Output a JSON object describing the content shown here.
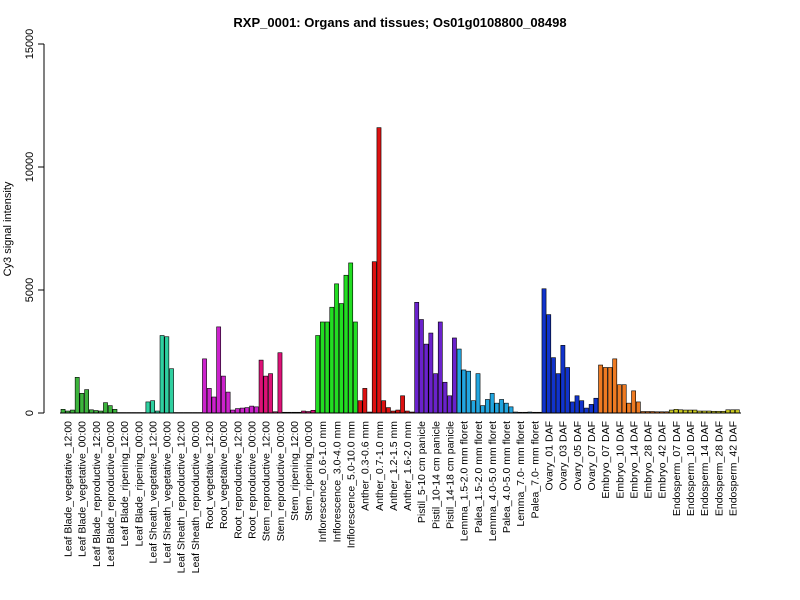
{
  "chart_data": {
    "type": "bar",
    "title": "RXP_0001: Organs and tissues; Os01g0108800_08498",
    "xlabel": "",
    "ylabel": "Cy3 signal intensity",
    "ylim": [
      0,
      15000
    ],
    "yticks": [
      0,
      5000,
      10000,
      15000
    ],
    "ytick_labels": [
      "0",
      "5000",
      "10000",
      "15000"
    ],
    "grid": false,
    "legend": "none",
    "groups": [
      {
        "label": "Leaf Blade_vegetative_12:00",
        "color": "#3cb43c",
        "values": [
          150,
          80,
          120
        ]
      },
      {
        "label": "Leaf Blade_vegetative_00:00",
        "color": "#3cb43c",
        "values": [
          1450,
          800,
          950
        ]
      },
      {
        "label": "Leaf Blade_reproductive_12:00",
        "color": "#3cb43c",
        "values": [
          130,
          100,
          80
        ]
      },
      {
        "label": "Leaf Blade_reproductive_00:00",
        "color": "#3cb43c",
        "values": [
          420,
          300,
          150
        ]
      },
      {
        "label": "Leaf Blade_ripening_12:00",
        "color": "#3cb43c",
        "values": [
          20,
          20,
          20
        ]
      },
      {
        "label": "Leaf Blade_ripening_00:00",
        "color": "#3cb43c",
        "values": [
          20,
          20,
          20
        ]
      },
      {
        "label": "Leaf Sheath_vegetative_12:00",
        "color": "#2fd0a0",
        "values": [
          450,
          500,
          80
        ]
      },
      {
        "label": "Leaf Sheath_vegetative_00:00",
        "color": "#2fd0a0",
        "values": [
          3150,
          3100,
          1800
        ]
      },
      {
        "label": "Leaf Sheath_reproductive_12:00",
        "color": "#2fd0a0",
        "values": [
          20,
          20,
          20
        ]
      },
      {
        "label": "Leaf Sheath_reproductive_00:00",
        "color": "#2fd0a0",
        "values": [
          20,
          20,
          20
        ]
      },
      {
        "label": "Root_vegetative_12:00",
        "color": "#cc22cc",
        "values": [
          2200,
          1000,
          650
        ]
      },
      {
        "label": "Root_vegetative_00:00",
        "color": "#cc22cc",
        "values": [
          3500,
          1500,
          850
        ]
      },
      {
        "label": "Root_reproductive_12:00",
        "color": "#cc22cc",
        "values": [
          120,
          180,
          200
        ]
      },
      {
        "label": "Root_reproductive_00:00",
        "color": "#cc22cc",
        "values": [
          220,
          280,
          250
        ]
      },
      {
        "label": "Stem_reproductive_12:00",
        "color": "#dd1177",
        "values": [
          2150,
          1500,
          1600
        ]
      },
      {
        "label": "Stem_reproductive_00:00",
        "color": "#dd1177",
        "values": [
          50,
          2450,
          30
        ]
      },
      {
        "label": "Stem_ripening_12:00",
        "color": "#dd1177",
        "values": [
          30,
          30,
          30
        ]
      },
      {
        "label": "Stem_ripening_00:00",
        "color": "#dd1177",
        "values": [
          80,
          60,
          110
        ]
      },
      {
        "label": "Inflorescence_0.6-1.0 mm",
        "color": "#22dd22",
        "values": [
          3150,
          3700,
          3700
        ]
      },
      {
        "label": "Inflorescence_3.0-4.0 mm",
        "color": "#22dd22",
        "values": [
          4300,
          5250,
          4450
        ]
      },
      {
        "label": "Inflorescence_5.0-10.0 mm",
        "color": "#22dd22",
        "values": [
          5600,
          6100,
          3700
        ]
      },
      {
        "label": "Anther_0.3-0.6 mm",
        "color": "#dd1111",
        "values": [
          500,
          1000,
          40
        ]
      },
      {
        "label": "Anther_0.7-1.0 mm",
        "color": "#dd1111",
        "values": [
          6150,
          11600,
          500
        ]
      },
      {
        "label": "Anther_1.2-1.5 mm",
        "color": "#dd1111",
        "values": [
          220,
          80,
          120
        ]
      },
      {
        "label": "Anther_1.6-2.0 mm",
        "color": "#dd1111",
        "values": [
          700,
          80,
          40
        ]
      },
      {
        "label": "Pistil_5-10 cm panicle",
        "color": "#6a22cc",
        "values": [
          4500,
          3800,
          2800
        ]
      },
      {
        "label": "Pistil_10-14 cm panicle",
        "color": "#6a22cc",
        "values": [
          3250,
          1600,
          3700
        ]
      },
      {
        "label": "Pistil_14-18 cm panicle",
        "color": "#6a22cc",
        "values": [
          1250,
          700,
          3050
        ]
      },
      {
        "label": "Lemma_1.5-2.0 mm floret",
        "color": "#22a6e0",
        "values": [
          2600,
          1750,
          1700
        ]
      },
      {
        "label": "Palea_1.5-2.0 mm floret",
        "color": "#22a6e0",
        "values": [
          500,
          1600,
          300
        ]
      },
      {
        "label": "Lemma_4.0-5.0 mm floret",
        "color": "#22a6e0",
        "values": [
          550,
          800,
          400
        ]
      },
      {
        "label": "Palea_4.0-5.0 mm floret",
        "color": "#22a6e0",
        "values": [
          550,
          400,
          250
        ]
      },
      {
        "label": "Lemma_7.0- mm floret",
        "color": "#22a6e0",
        "values": [
          40,
          30,
          30
        ]
      },
      {
        "label": "Palea_7.0- mm floret",
        "color": "#22a6e0",
        "values": [
          40,
          30,
          30
        ]
      },
      {
        "label": "Ovary_01 DAF",
        "color": "#1133cc",
        "values": [
          5050,
          4000,
          2250
        ]
      },
      {
        "label": "Ovary_03 DAF",
        "color": "#1133cc",
        "values": [
          1600,
          2750,
          1850
        ]
      },
      {
        "label": "Ovary_05 DAF",
        "color": "#1133cc",
        "values": [
          450,
          700,
          500
        ]
      },
      {
        "label": "Ovary_07 DAF",
        "color": "#1133cc",
        "values": [
          200,
          350,
          600
        ]
      },
      {
        "label": "Embryo_07 DAF",
        "color": "#ee7a22",
        "values": [
          1950,
          1850,
          1850
        ]
      },
      {
        "label": "Embryo_10 DAF",
        "color": "#ee7a22",
        "values": [
          2200,
          1150,
          1150
        ]
      },
      {
        "label": "Embryo_14 DAF",
        "color": "#ee7a22",
        "values": [
          400,
          900,
          450
        ]
      },
      {
        "label": "Embryo_28 DAF",
        "color": "#ee7a22",
        "values": [
          60,
          60,
          60
        ]
      },
      {
        "label": "Embryo_42 DAF",
        "color": "#ee7a22",
        "values": [
          50,
          50,
          50
        ]
      },
      {
        "label": "Endosperm_07 DAF",
        "color": "#cccc22",
        "values": [
          120,
          150,
          130
        ]
      },
      {
        "label": "Endosperm_10 DAF",
        "color": "#cccc22",
        "values": [
          120,
          120,
          120
        ]
      },
      {
        "label": "Endosperm_14 DAF",
        "color": "#cccc22",
        "values": [
          80,
          80,
          80
        ]
      },
      {
        "label": "Endosperm_28 DAF",
        "color": "#cccc22",
        "values": [
          70,
          70,
          70
        ]
      },
      {
        "label": "Endosperm_42 DAF",
        "color": "#cccc22",
        "values": [
          130,
          130,
          130
        ]
      }
    ]
  }
}
